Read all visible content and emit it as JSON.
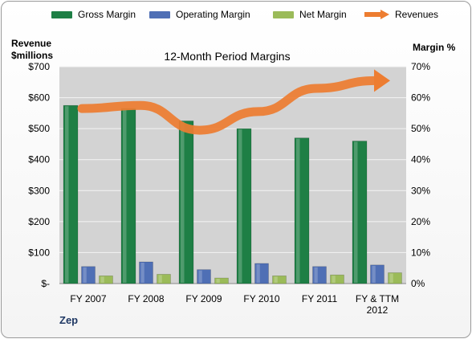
{
  "legend": {
    "gross": "Gross Margin",
    "operating": "Operating Margin",
    "net": "Net Margin",
    "revenues": "Revenues"
  },
  "left_axis_title": [
    "Revenue",
    "$millions"
  ],
  "right_axis_title": "Margin %",
  "company": "Zep",
  "colors": {
    "gross": "#1e7f45",
    "operating": "#4f6fb5",
    "net": "#9bbb59",
    "revenues": "#ed7d31",
    "plot_bg": "#d3d3d3"
  },
  "chart_data": {
    "type": "bar",
    "title": "12-Month Period Margins",
    "categories": [
      "FY 2007",
      "FY 2008",
      "FY 2009",
      "FY 2010",
      "FY 2011",
      "FY & TTM 2012"
    ],
    "series": [
      {
        "name": "Gross Margin",
        "axis": "right",
        "unit": "%",
        "values": [
          57.5,
          56.5,
          52.5,
          50,
          47,
          46
        ]
      },
      {
        "name": "Operating Margin",
        "axis": "right",
        "unit": "%",
        "values": [
          5.5,
          7,
          4.5,
          6.5,
          5.5,
          6
        ]
      },
      {
        "name": "Net Margin",
        "axis": "right",
        "unit": "%",
        "values": [
          2.5,
          3,
          1.8,
          2.5,
          2.8,
          3.5
        ]
      },
      {
        "name": "Revenues",
        "type": "line",
        "axis": "left",
        "unit": "$millions",
        "values": [
          565,
          575,
          495,
          555,
          630,
          655
        ]
      }
    ],
    "y_left": {
      "ylim": [
        0,
        700
      ],
      "ticks": [
        "$-",
        "$100",
        "$200",
        "$300",
        "$400",
        "$500",
        "$600",
        "$700"
      ]
    },
    "y_right": {
      "ylim": [
        0,
        70
      ],
      "ticks": [
        "0%",
        "10%",
        "20%",
        "30%",
        "40%",
        "50%",
        "60%",
        "70%"
      ]
    },
    "grid": true,
    "legend_position": "top"
  }
}
